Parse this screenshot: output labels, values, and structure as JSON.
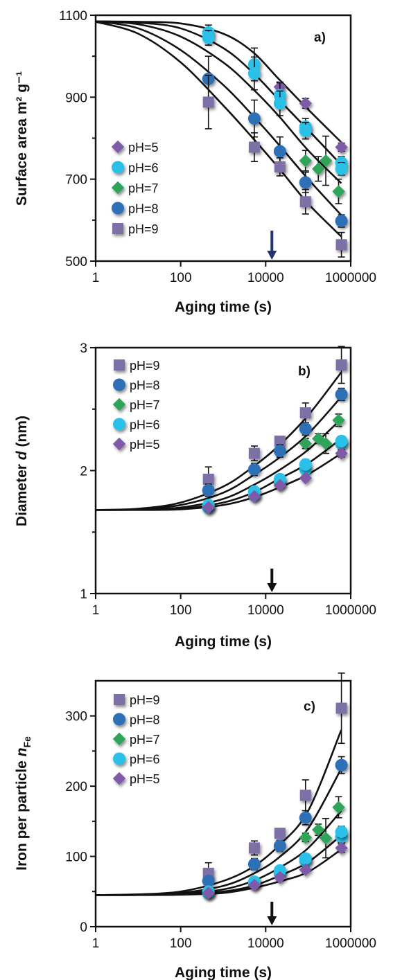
{
  "colors": {
    "pH=5": "#7e5aa8",
    "pH=6": "#2cc0e8",
    "pH=7": "#2fa35a",
    "pH=8": "#2f6fb5",
    "pH=9": "#7d6fa6",
    "curve": "#111111",
    "arrow_a": "#25346b",
    "arrow_bc": "#111111"
  },
  "chart_data": [
    {
      "type": "scatter",
      "panel_label": "a)",
      "xlabel": "Aging time (s)",
      "ylabel": "Surface area  m² g⁻¹",
      "xscale": "log",
      "xlim": [
        1,
        1000000
      ],
      "ylim": [
        500,
        1100
      ],
      "x_ticks": [
        "1",
        "100",
        "10000",
        "1000000"
      ],
      "y_ticks": [
        "500",
        "700",
        "900",
        "1100"
      ],
      "legend_position": "left",
      "legend": [
        "pH=5",
        "pH=6",
        "pH=7",
        "pH=8",
        "pH=9"
      ],
      "arrow_x": 14000,
      "series": [
        {
          "name": "pH=5",
          "marker": "diamond",
          "x": [
            21600,
            86400,
            604800
          ],
          "y": [
            925,
            885,
            778
          ],
          "err": [
            12,
            12,
            10
          ]
        },
        {
          "name": "pH=6",
          "marker": "circle",
          "x": [
            450,
            450,
            5400,
            5400,
            21600,
            21600,
            86400,
            86400,
            604800,
            604800
          ],
          "y": [
            1058,
            1045,
            980,
            958,
            905,
            885,
            828,
            818,
            740,
            725
          ],
          "err": [
            18,
            18,
            40,
            40,
            30,
            30,
            20,
            20,
            15,
            15
          ]
        },
        {
          "name": "pH=7",
          "marker": "diamond",
          "x": [
            86400,
            172800,
            259200,
            518400
          ],
          "y": [
            745,
            725,
            745,
            670
          ],
          "err": [
            25,
            30,
            60,
            30
          ]
        },
        {
          "name": "pH=8",
          "marker": "circle",
          "x": [
            450,
            5400,
            21600,
            86400,
            604800
          ],
          "y": [
            945,
            848,
            768,
            692,
            598
          ],
          "err": [
            55,
            45,
            35,
            25,
            15
          ]
        },
        {
          "name": "pH=9",
          "marker": "square",
          "x": [
            450,
            5400,
            21600,
            86400,
            604800
          ],
          "y": [
            888,
            778,
            730,
            645,
            540
          ],
          "err": [
            65,
            35,
            22,
            30,
            30
          ]
        }
      ],
      "fits": [
        {
          "name": "pH=5",
          "x": [
            1,
            10,
            100,
            1000,
            5000,
            20000,
            100000,
            600000
          ],
          "y": [
            1085,
            1084,
            1080,
            1055,
            1010,
            945,
            870,
            790
          ]
        },
        {
          "name": "pH=6",
          "x": [
            1,
            10,
            100,
            1000,
            5000,
            20000,
            100000,
            600000
          ],
          "y": [
            1085,
            1082,
            1068,
            1020,
            960,
            895,
            820,
            735
          ]
        },
        {
          "name": "pH=7",
          "x": [
            1,
            10,
            100,
            1000,
            5000,
            20000,
            100000,
            600000
          ],
          "y": [
            1085,
            1078,
            1048,
            985,
            920,
            855,
            770,
            690
          ]
        },
        {
          "name": "pH=8",
          "x": [
            1,
            10,
            100,
            1000,
            5000,
            20000,
            100000,
            600000
          ],
          "y": [
            1085,
            1068,
            1015,
            930,
            855,
            785,
            700,
            612
          ]
        },
        {
          "name": "pH=9",
          "x": [
            1,
            10,
            100,
            1000,
            5000,
            20000,
            100000,
            600000
          ],
          "y": [
            1084,
            1055,
            985,
            880,
            800,
            728,
            640,
            560
          ]
        }
      ]
    },
    {
      "type": "scatter",
      "panel_label": "b)",
      "xlabel": "Aging time (s)",
      "ylabel_main": "Diameter ",
      "ylabel_var": "d",
      "ylabel_unit": "  (nm)",
      "xscale": "log",
      "xlim": [
        1,
        1000000
      ],
      "ylim": [
        1,
        3
      ],
      "x_ticks": [
        "1",
        "100",
        "10000",
        "1000000"
      ],
      "y_ticks": [
        "1",
        "2",
        "3"
      ],
      "legend_position": "top-left",
      "legend": [
        "pH=9",
        "pH=8",
        "pH=7",
        "pH=6",
        "pH=5"
      ],
      "arrow_x": 14000,
      "series": [
        {
          "name": "pH=9",
          "marker": "square",
          "x": [
            450,
            5400,
            21600,
            86400,
            604800
          ],
          "y": [
            1.93,
            2.14,
            2.24,
            2.47,
            2.86
          ],
          "err": [
            0.1,
            0.06,
            0.04,
            0.08,
            0.15
          ]
        },
        {
          "name": "pH=8",
          "marker": "circle",
          "x": [
            450,
            5400,
            21600,
            86400,
            604800
          ],
          "y": [
            1.84,
            2.01,
            2.16,
            2.34,
            2.62
          ],
          "err": [
            0.05,
            0.05,
            0.05,
            0.05,
            0.05
          ]
        },
        {
          "name": "pH=7",
          "marker": "diamond",
          "x": [
            86400,
            172800,
            259200,
            518400
          ],
          "y": [
            2.22,
            2.26,
            2.22,
            2.41
          ],
          "err": [
            0.04,
            0.04,
            0.08,
            0.05
          ]
        },
        {
          "name": "pH=6",
          "marker": "circle",
          "x": [
            450,
            450,
            5400,
            5400,
            21600,
            21600,
            86400,
            86400,
            604800,
            604800
          ],
          "y": [
            1.7,
            1.72,
            1.8,
            1.83,
            1.9,
            1.93,
            2.01,
            2.05,
            2.22,
            2.24
          ],
          "err": [
            0.03,
            0.03,
            0.04,
            0.04,
            0.04,
            0.04,
            0.04,
            0.04,
            0.04,
            0.04
          ]
        },
        {
          "name": "pH=5",
          "marker": "diamond",
          "x": [
            450,
            5400,
            21600,
            86400,
            604800
          ],
          "y": [
            1.7,
            1.79,
            1.88,
            1.94,
            2.14
          ],
          "err": [
            0.02,
            0.02,
            0.02,
            0.02,
            0.03
          ]
        }
      ],
      "fits": [
        {
          "name": "pH=9",
          "x": [
            1,
            10,
            100,
            1000,
            5000,
            20000,
            100000,
            600000
          ],
          "y": [
            1.68,
            1.69,
            1.74,
            1.87,
            2.03,
            2.2,
            2.45,
            2.8
          ]
        },
        {
          "name": "pH=8",
          "x": [
            1,
            10,
            100,
            1000,
            5000,
            20000,
            100000,
            600000
          ],
          "y": [
            1.68,
            1.685,
            1.72,
            1.82,
            1.96,
            2.1,
            2.3,
            2.6
          ]
        },
        {
          "name": "pH=7",
          "x": [
            1,
            10,
            100,
            1000,
            5000,
            20000,
            100000,
            600000
          ],
          "y": [
            1.68,
            1.682,
            1.7,
            1.77,
            1.88,
            2.0,
            2.17,
            2.42
          ]
        },
        {
          "name": "pH=6",
          "x": [
            1,
            10,
            100,
            1000,
            5000,
            20000,
            100000,
            600000
          ],
          "y": [
            1.68,
            1.681,
            1.69,
            1.74,
            1.82,
            1.93,
            2.06,
            2.26
          ]
        },
        {
          "name": "pH=5",
          "x": [
            1,
            10,
            100,
            1000,
            5000,
            20000,
            100000,
            600000
          ],
          "y": [
            1.68,
            1.68,
            1.685,
            1.72,
            1.78,
            1.86,
            1.97,
            2.14
          ]
        }
      ]
    },
    {
      "type": "scatter",
      "panel_label": "c)",
      "xlabel": "Aging time (s)",
      "ylabel_main": "Iron per particle ",
      "ylabel_var": "n",
      "ylabel_sub": "Fe",
      "xscale": "log",
      "xlim": [
        1,
        1000000
      ],
      "ylim": [
        0,
        350
      ],
      "x_ticks": [
        "1",
        "100",
        "10000",
        "1000000"
      ],
      "y_ticks": [
        "0",
        "100",
        "200",
        "300"
      ],
      "legend_position": "top-left",
      "legend": [
        "pH=9",
        "pH=8",
        "pH=7",
        "pH=6",
        "pH=5"
      ],
      "arrow_x": 14000,
      "series": [
        {
          "name": "pH=9",
          "marker": "square",
          "x": [
            450,
            5400,
            21600,
            86400,
            604800
          ],
          "y": [
            76,
            112,
            133,
            187,
            311
          ],
          "err": [
            15,
            10,
            6,
            22,
            50
          ]
        },
        {
          "name": "pH=8",
          "marker": "circle",
          "x": [
            450,
            5400,
            21600,
            86400,
            604800
          ],
          "y": [
            65,
            89,
            115,
            155,
            230
          ],
          "err": [
            6,
            8,
            8,
            10,
            12
          ]
        },
        {
          "name": "pH=7",
          "marker": "diamond",
          "x": [
            86400,
            172800,
            259200,
            518400
          ],
          "y": [
            127,
            138,
            126,
            170
          ],
          "err": [
            6,
            8,
            28,
            15
          ]
        },
        {
          "name": "pH=6",
          "marker": "circle",
          "x": [
            450,
            450,
            5400,
            5400,
            21600,
            21600,
            86400,
            86400,
            604800,
            604800
          ],
          "y": [
            48,
            50,
            62,
            64,
            76,
            80,
            94,
            97,
            128,
            135
          ],
          "err": [
            4,
            4,
            5,
            5,
            5,
            5,
            6,
            6,
            8,
            8
          ]
        },
        {
          "name": "pH=5",
          "marker": "diamond",
          "x": [
            450,
            5400,
            21600,
            86400,
            604800
          ],
          "y": [
            48,
            59,
            70,
            81,
            112
          ],
          "err": [
            3,
            3,
            4,
            4,
            6
          ]
        }
      ],
      "fits": [
        {
          "name": "pH=9",
          "x": [
            1,
            10,
            100,
            1000,
            5000,
            20000,
            100000,
            600000
          ],
          "y": [
            45,
            46,
            50,
            65,
            85,
            115,
            165,
            280
          ]
        },
        {
          "name": "pH=8",
          "x": [
            1,
            10,
            100,
            1000,
            5000,
            20000,
            100000,
            600000
          ],
          "y": [
            45,
            45.5,
            48,
            58,
            75,
            98,
            140,
            225
          ]
        },
        {
          "name": "pH=7",
          "x": [
            1,
            10,
            100,
            1000,
            5000,
            20000,
            100000,
            600000
          ],
          "y": [
            45,
            45.2,
            47,
            53,
            65,
            83,
            112,
            165
          ]
        },
        {
          "name": "pH=6",
          "x": [
            1,
            10,
            100,
            1000,
            5000,
            20000,
            100000,
            600000
          ],
          "y": [
            45,
            45.1,
            46,
            50,
            58,
            72,
            92,
            130
          ]
        },
        {
          "name": "pH=5",
          "x": [
            1,
            10,
            100,
            1000,
            5000,
            20000,
            100000,
            600000
          ],
          "y": [
            45,
            45,
            45.5,
            48,
            55,
            64,
            78,
            110
          ]
        }
      ]
    }
  ]
}
